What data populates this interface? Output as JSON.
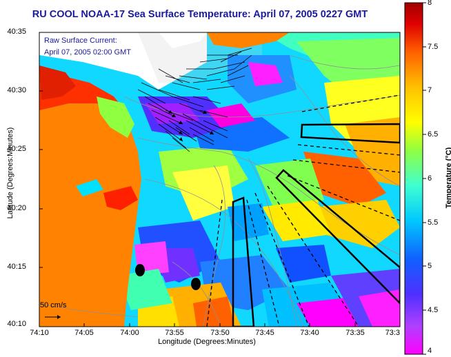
{
  "title": "RU COOL  NOAA-17  Sea Surface Temperature:  April 07, 2005 0227 GMT",
  "info": {
    "line1": "Raw Surface Current:",
    "line2": "April 07, 2005 02:00 GMT"
  },
  "axes": {
    "ylabel": "Latitude (Degrees:Minutes)",
    "xlabel": "Longitude (Degrees:Minutes)",
    "y_ticks": [
      "40:35",
      "40:30",
      "40:25",
      "40:20",
      "40:15",
      "40:10"
    ],
    "x_ticks": [
      "74:10",
      "74:05",
      "74:00",
      "73:55",
      "73:50",
      "73:45",
      "73:40",
      "73:35",
      "73:3"
    ]
  },
  "colorbar": {
    "label": "Temperature (°C)",
    "ticks": [
      "8",
      "7.5",
      "7",
      "6.5",
      "6",
      "5.5",
      "5",
      "4.5",
      "4"
    ],
    "range": [
      4,
      8
    ]
  },
  "scale_label": "50 cm/s",
  "colors": {
    "land": "#ff8200",
    "ocean_base": "#00e8ff",
    "title": "#1a1aa0"
  }
}
